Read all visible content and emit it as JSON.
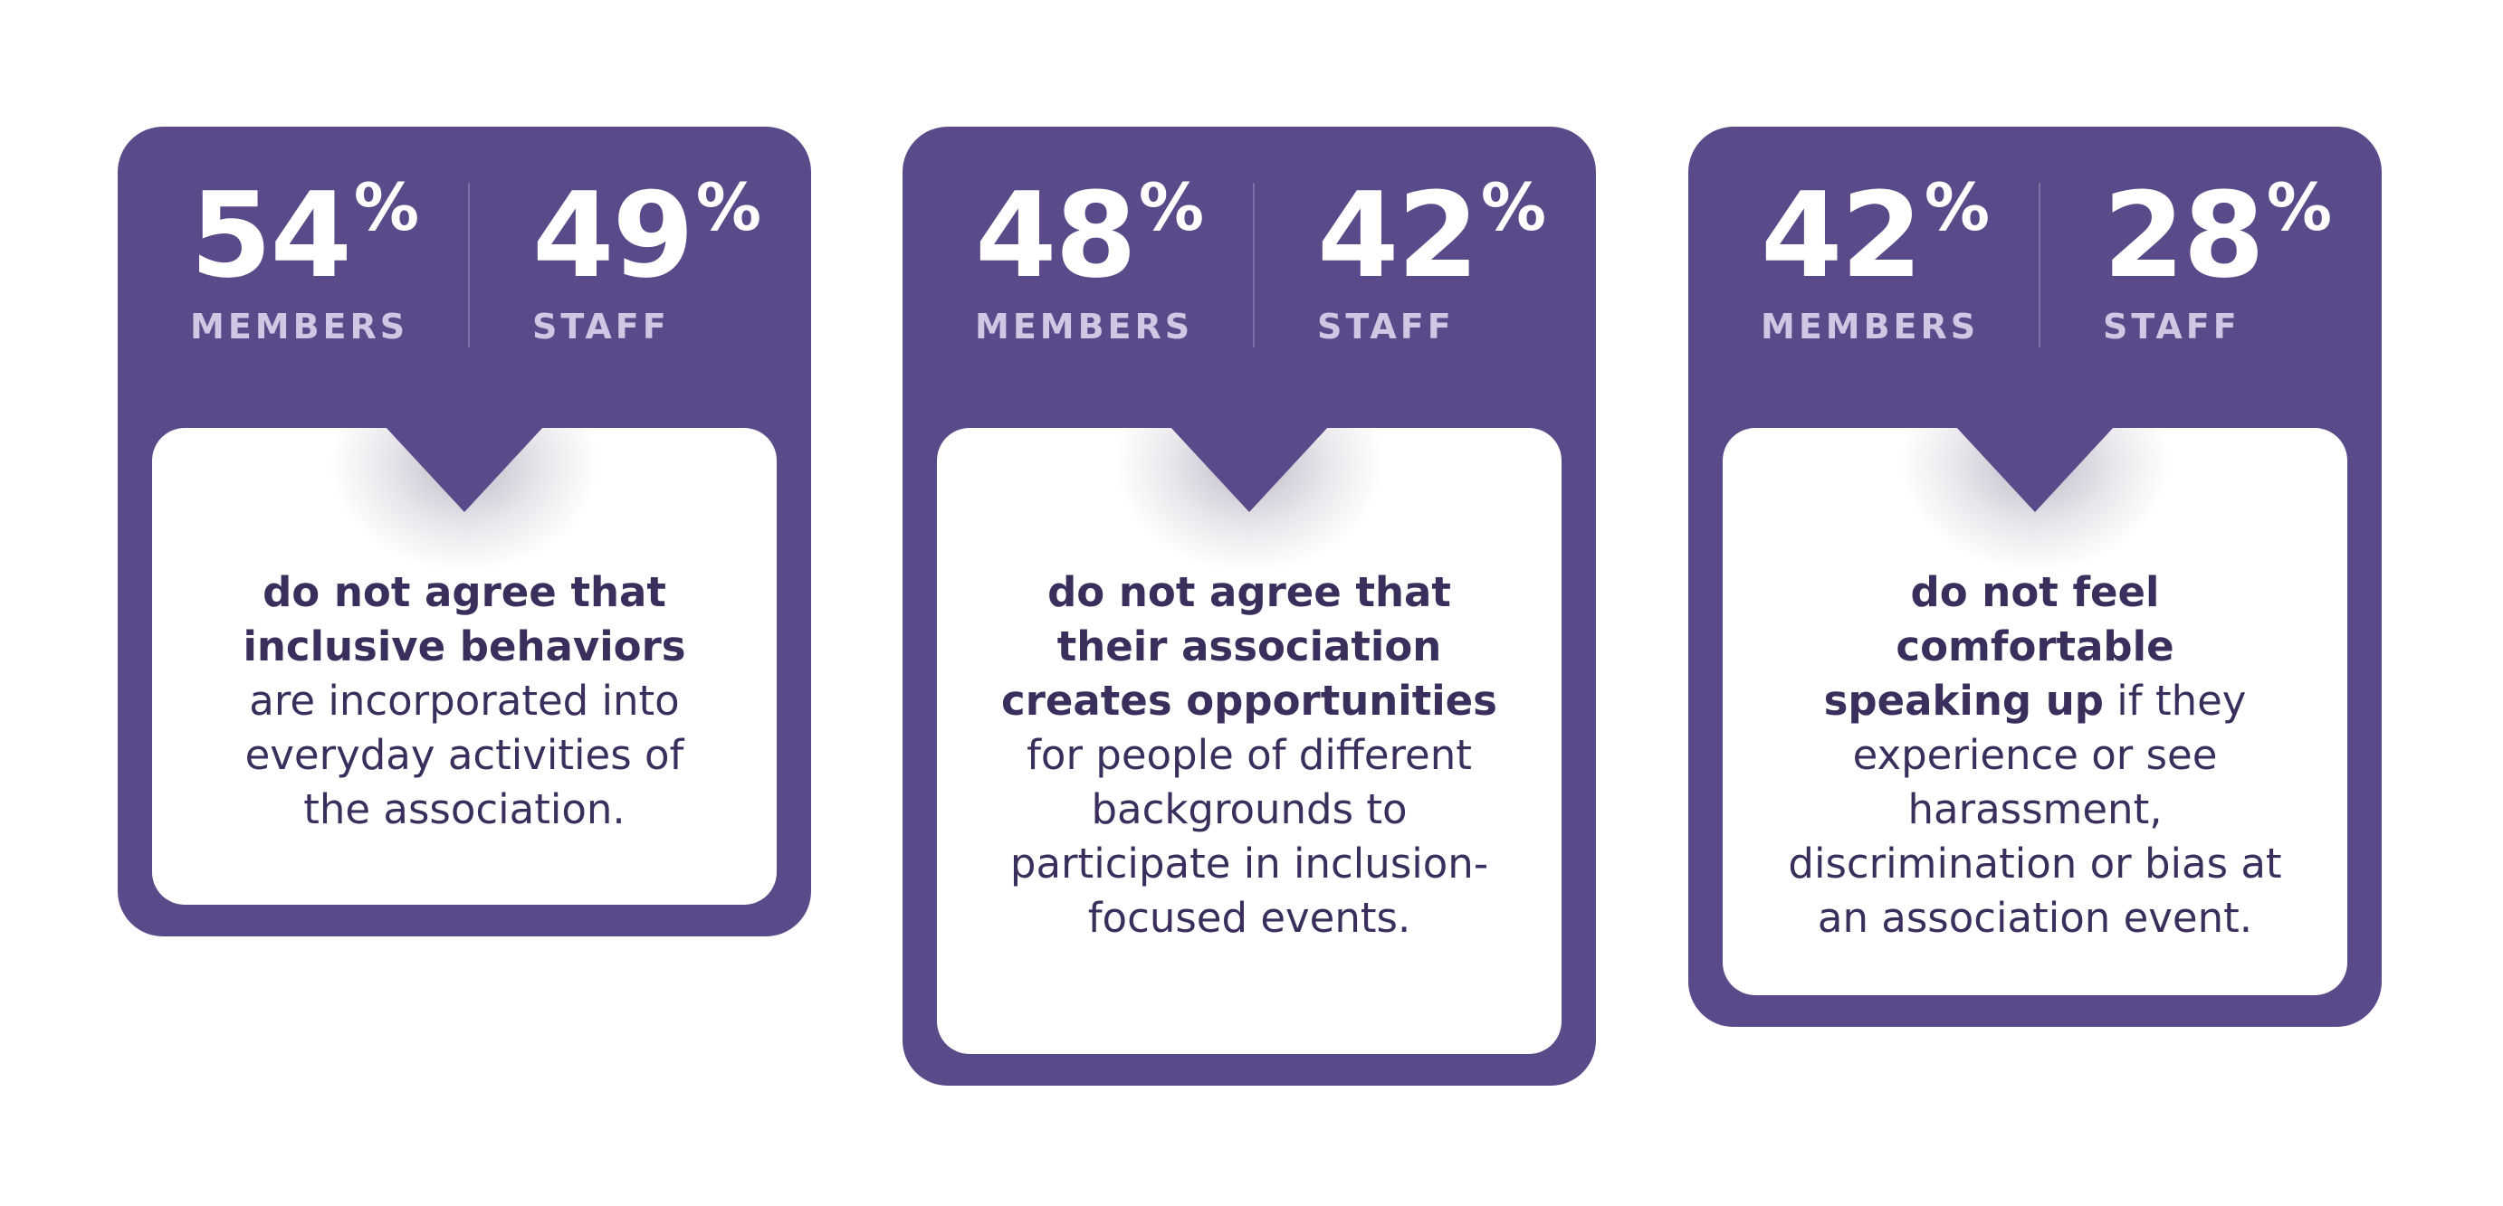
{
  "cards": [
    {
      "members": {
        "value": "54",
        "percent": "%",
        "label": "MEMBERS"
      },
      "staff": {
        "value": "49",
        "percent": "%",
        "label": "STAFF"
      },
      "description_bold": "do not agree that inclusive behaviors",
      "description_rest": " are incorporated into everyday activities of the association."
    },
    {
      "members": {
        "value": "48",
        "percent": "%",
        "label": "MEMBERS"
      },
      "staff": {
        "value": "42",
        "percent": "%",
        "label": "STAFF"
      },
      "description_bold": "do not agree that their association creates opportunities",
      "description_rest": " for people of different backgrounds to participate in inclusion-focused events."
    },
    {
      "members": {
        "value": "42",
        "percent": "%",
        "label": "MEMBERS"
      },
      "staff": {
        "value": "28",
        "percent": "%",
        "label": "STAFF"
      },
      "description_bold": "do not feel comfortable speaking up",
      "description_rest": " if they experience or see harassment, discrimination or bias at an association event."
    }
  ],
  "colors": {
    "card_purple": "#5a4a89",
    "label_lavender": "#cfc7e3",
    "text_dark_purple": "#3a2f5c",
    "panel_white": "#ffffff"
  }
}
